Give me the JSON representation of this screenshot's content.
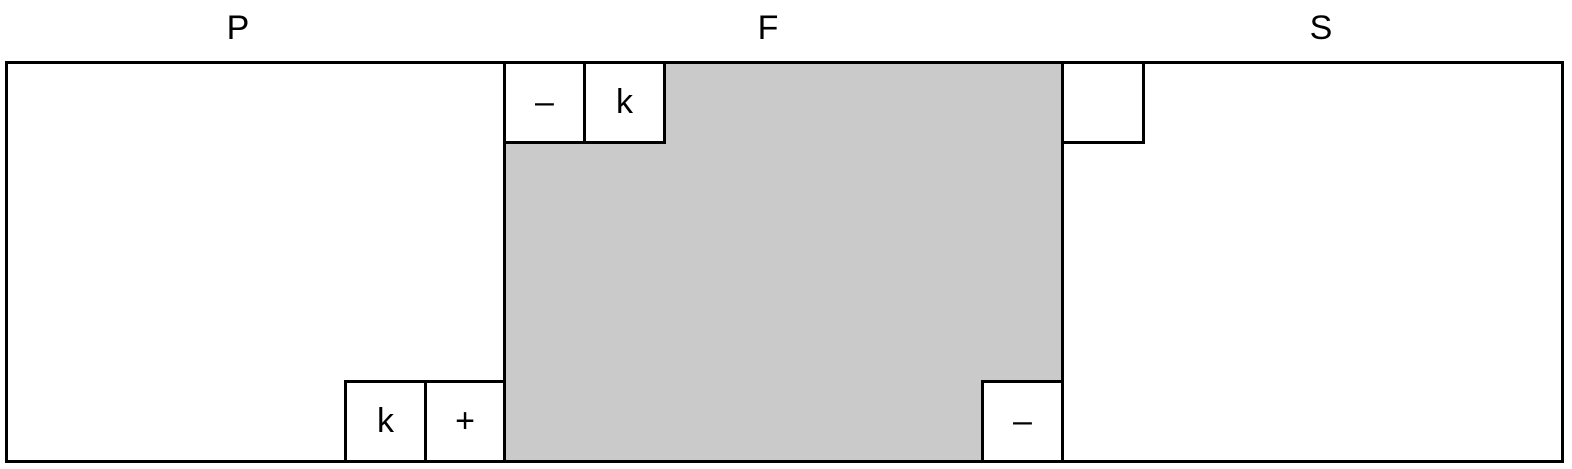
{
  "regions": {
    "left": {
      "label": "P",
      "fill": "#ffffff",
      "cells": [
        "k",
        "+"
      ]
    },
    "middle": {
      "label": "F",
      "fill": "#cacaca",
      "top_cells": [
        "–",
        "k"
      ],
      "bottom_cells": [
        "–"
      ]
    },
    "right": {
      "label": "S",
      "fill": "#ffffff",
      "cells": [
        ""
      ]
    }
  }
}
